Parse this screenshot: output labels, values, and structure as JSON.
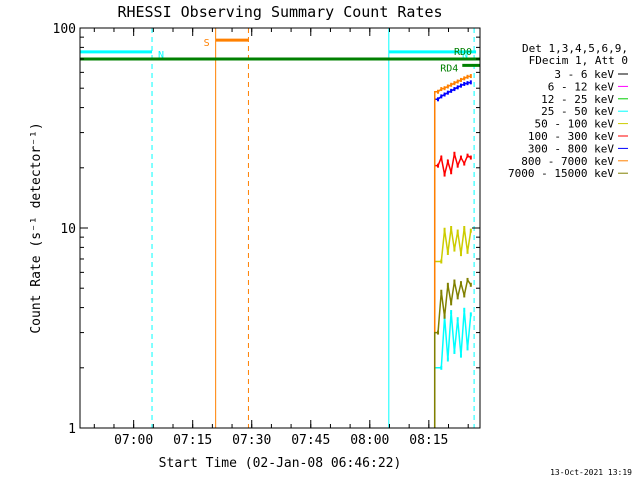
{
  "chart_data": {
    "type": "line",
    "title": "RHESSI Observing Summary Count Rates",
    "xlabel": "Start Time (02-Jan-08 06:46:22)",
    "ylabel": "Count Rate (s⁻¹ detector⁻¹)",
    "y_scale": "log",
    "ylim": [
      1,
      100
    ],
    "xlim": [
      "06:46:22",
      "08:28:00"
    ],
    "x_ticks": [
      "07:00",
      "07:15",
      "07:30",
      "07:45",
      "08:00",
      "08:15"
    ],
    "y_ticks": [
      {
        "value": 1,
        "label": "1"
      },
      {
        "value": 10,
        "label": "10"
      },
      {
        "value": 100,
        "label": "100"
      }
    ],
    "legend_header": [
      "Det 1,3,4,5,6,9,",
      "FDecim 1, Att 0"
    ],
    "legend_position": "right",
    "series": [
      {
        "name": "3 - 6 keV",
        "color": "#000000",
        "points": []
      },
      {
        "name": "6 - 12 keV",
        "color": "#ff00ff",
        "points": []
      },
      {
        "name": "12 - 25 keV",
        "color": "#00cc00",
        "points": []
      },
      {
        "name": "25 - 50 keV",
        "color": "#00ffff",
        "points": [
          [
            "08:18:10",
            2.0
          ],
          [
            "08:19:00",
            3.6
          ],
          [
            "08:19:50",
            2.2
          ],
          [
            "08:20:40",
            3.8
          ],
          [
            "08:21:30",
            2.4
          ],
          [
            "08:22:20",
            3.5
          ],
          [
            "08:23:10",
            2.3
          ],
          [
            "08:24:00",
            3.9
          ],
          [
            "08:24:50",
            2.5
          ],
          [
            "08:25:40",
            3.7
          ]
        ]
      },
      {
        "name": "50 - 100 keV",
        "color": "#cccc00",
        "points": [
          [
            "08:18:10",
            6.8
          ],
          [
            "08:19:00",
            9.8
          ],
          [
            "08:19:50",
            7.5
          ],
          [
            "08:20:40",
            10.0
          ],
          [
            "08:21:30",
            7.8
          ],
          [
            "08:22:20",
            9.6
          ],
          [
            "08:23:10",
            7.4
          ],
          [
            "08:24:00",
            10.0
          ],
          [
            "08:24:50",
            7.6
          ],
          [
            "08:25:40",
            9.7
          ]
        ]
      },
      {
        "name": "100 - 300 keV",
        "color": "#ff0000",
        "points": [
          [
            "08:17:20",
            20.5
          ],
          [
            "08:18:10",
            22.5
          ],
          [
            "08:19:00",
            18.5
          ],
          [
            "08:19:50",
            21.5
          ],
          [
            "08:20:40",
            19.0
          ],
          [
            "08:21:30",
            23.5
          ],
          [
            "08:22:20",
            20.5
          ],
          [
            "08:23:10",
            22.5
          ],
          [
            "08:24:00",
            21.0
          ],
          [
            "08:24:50",
            23.0
          ],
          [
            "08:25:40",
            22.5
          ]
        ]
      },
      {
        "name": "300 - 800 keV",
        "color": "#0000ff",
        "points": [
          [
            "08:17:20",
            44.0
          ],
          [
            "08:18:10",
            45.5
          ],
          [
            "08:19:00",
            46.5
          ],
          [
            "08:19:50",
            47.5
          ],
          [
            "08:20:40",
            48.5
          ],
          [
            "08:21:30",
            49.5
          ],
          [
            "08:22:20",
            50.5
          ],
          [
            "08:23:10",
            51.5
          ],
          [
            "08:24:00",
            52.5
          ],
          [
            "08:24:50",
            53.0
          ],
          [
            "08:25:40",
            53.5
          ]
        ]
      },
      {
        "name": "800 - 7000 keV",
        "color": "#ff8000",
        "points": [
          [
            "08:17:20",
            48.0
          ],
          [
            "08:18:10",
            49.5
          ],
          [
            "08:19:00",
            50.0
          ],
          [
            "08:19:50",
            51.0
          ],
          [
            "08:20:40",
            52.0
          ],
          [
            "08:21:30",
            53.0
          ],
          [
            "08:22:20",
            54.0
          ],
          [
            "08:23:10",
            55.0
          ],
          [
            "08:24:00",
            56.0
          ],
          [
            "08:24:50",
            57.0
          ],
          [
            "08:25:40",
            57.5
          ]
        ]
      },
      {
        "name": "7000 - 15000 keV",
        "color": "#808000",
        "points": [
          [
            "08:17:20",
            3.0
          ],
          [
            "08:18:10",
            4.8
          ],
          [
            "08:19:00",
            3.6
          ],
          [
            "08:19:50",
            5.2
          ],
          [
            "08:20:40",
            4.2
          ],
          [
            "08:21:30",
            5.4
          ],
          [
            "08:22:20",
            4.5
          ],
          [
            "08:23:10",
            5.3
          ],
          [
            "08:24:00",
            4.6
          ],
          [
            "08:24:50",
            5.5
          ],
          [
            "08:25:40",
            5.2
          ]
        ]
      }
    ],
    "flags": [
      {
        "label": "N",
        "color": "#00ffff",
        "start": "06:46:22",
        "end": "07:04:40",
        "level": 76,
        "end_line": "07:04:40"
      },
      {
        "label": "N",
        "color": "#00ffff",
        "start": "08:04:50",
        "end": "08:27:00",
        "level": 76,
        "start_line": "08:04:50",
        "end_line": "08:26:30"
      },
      {
        "label": "S",
        "color": "#ff8000",
        "start": "07:20:50",
        "end": "07:29:10",
        "level": 87,
        "start_line": "07:20:50",
        "end_line": "07:29:10"
      },
      {
        "label": "RD0",
        "color": "#008000",
        "start": "06:46:22",
        "end": "08:28:00",
        "level": 70
      },
      {
        "label": "RD4",
        "color": "#008000",
        "start": "08:23:30",
        "end": "08:28:00",
        "level": 65
      }
    ]
  },
  "footer_timestamp": "13-Oct-2021 13:19"
}
